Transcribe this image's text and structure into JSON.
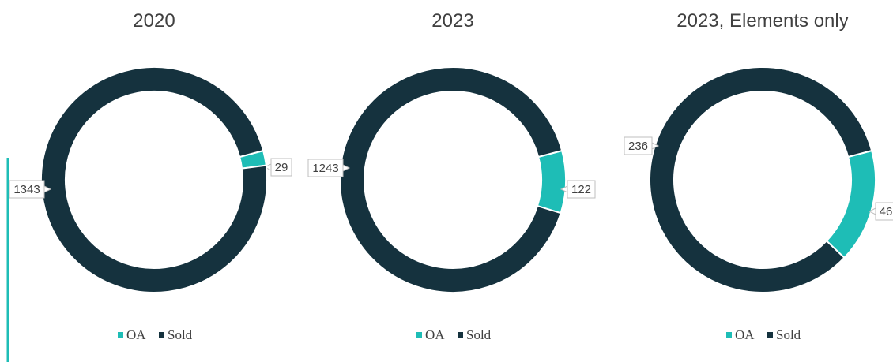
{
  "chart_data": [
    {
      "type": "donut",
      "title": "2020",
      "categories": [
        "OA",
        "Sold"
      ],
      "values": [
        29,
        1343
      ],
      "colors": [
        "#1ebdb6",
        "#15323e"
      ]
    },
    {
      "type": "donut",
      "title": "2023",
      "categories": [
        "OA",
        "Sold"
      ],
      "values": [
        122,
        1243
      ],
      "colors": [
        "#1ebdb6",
        "#15323e"
      ]
    },
    {
      "type": "donut",
      "title": "2023, Elements only",
      "categories": [
        "OA",
        "Sold"
      ],
      "values": [
        46,
        236
      ],
      "colors": [
        "#1ebdb6",
        "#15323e"
      ]
    }
  ]
}
